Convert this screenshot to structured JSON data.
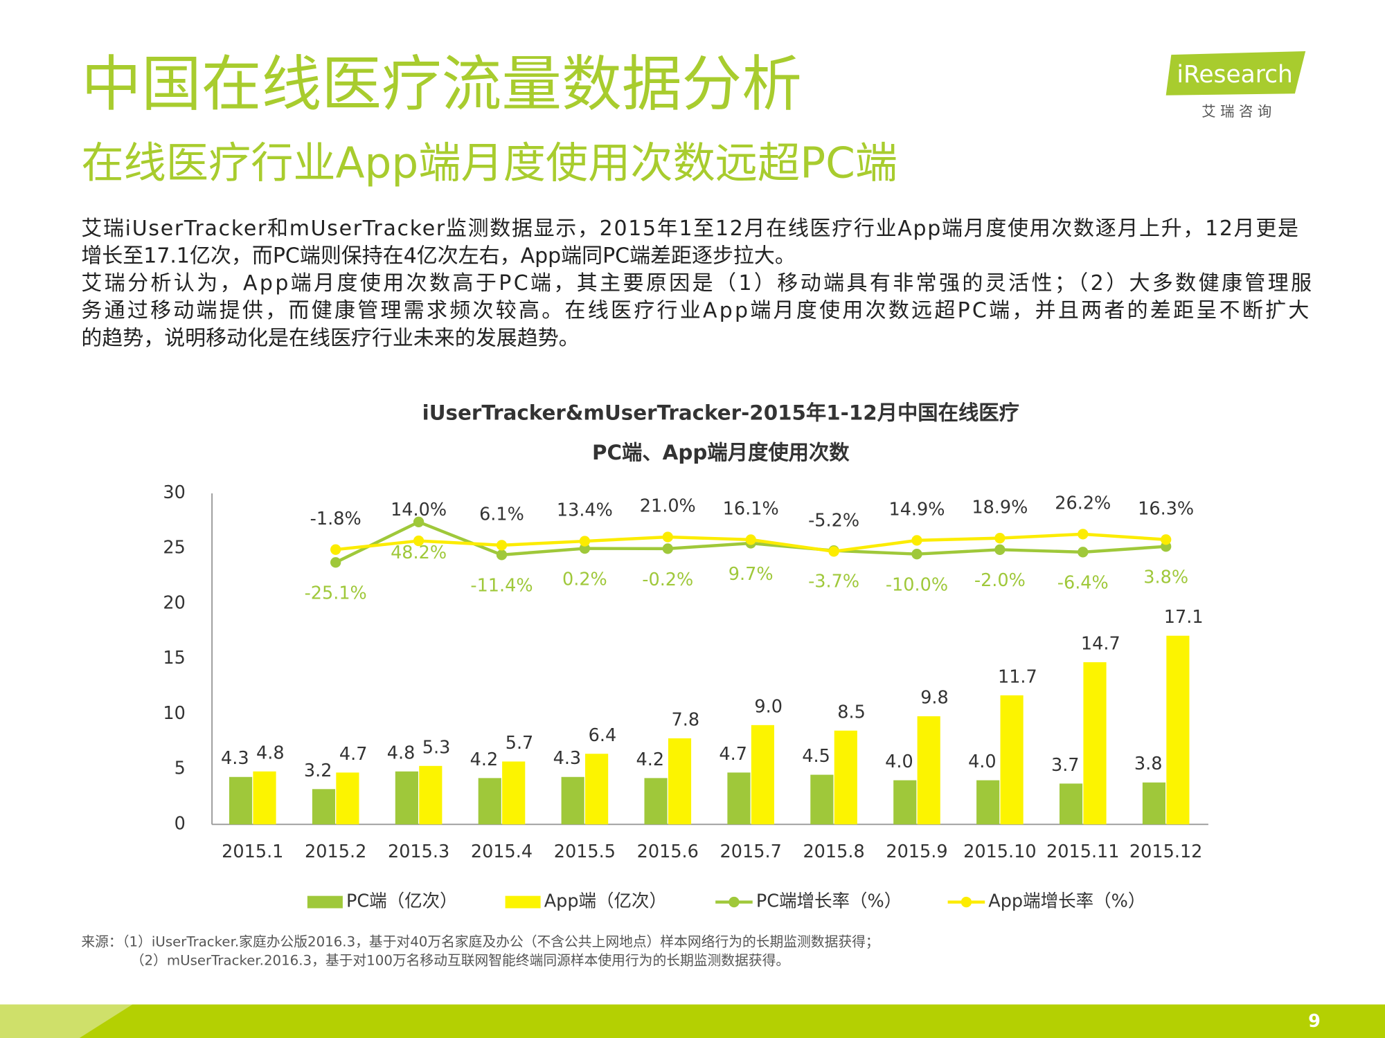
{
  "header": {
    "title": "中国在线医疗流量数据分析",
    "subtitle": "在线医疗行业App端月度使用次数远超PC端"
  },
  "logo": {
    "brand": "iResearch",
    "name": "艾 瑞 咨 询"
  },
  "body": [
    "艾瑞iUserTracker和mUserTracker监测数据显示，2015年1至12月在线医疗行业App端月度使用次数逐月上升，12月更是",
    "增长至17.1亿次，而PC端则保持在4亿次左右，App端同PC端差距逐步拉大。",
    "艾瑞分析认为，App端月度使用次数高于PC端，其主要原因是（1）移动端具有非常强的灵活性；（2）大多数健康管理服",
    "务通过移动端提供，而健康管理需求频次较高。在线医疗行业App端月度使用次数远超PC端，并且两者的差距呈不断扩大",
    "的趋势，说明移动化是在线医疗行业未来的发展趋势。"
  ],
  "source": [
    "来源：（1）iUserTracker.家庭办公版2016.3，基于对40万名家庭及办公（不含公共上网地点）样本网络行为的长期监测数据获得；",
    "（2）mUserTracker.2016.3，基于对100万名移动互联网智能终端同源样本使用行为的长期监测数据获得。"
  ],
  "page_number": "9",
  "chart_data": {
    "type": "bar",
    "title": [
      "iUserTracker&mUserTracker-2015年1-12月中国在线医疗",
      "PC端、App端月度使用次数"
    ],
    "categories": [
      "2015.1",
      "2015.2",
      "2015.3",
      "2015.4",
      "2015.5",
      "2015.6",
      "2015.7",
      "2015.8",
      "2015.9",
      "2015.10",
      "2015.11",
      "2015.12"
    ],
    "ylim": [
      0,
      30
    ],
    "yticks": [
      0,
      5,
      10,
      15,
      20,
      25,
      30
    ],
    "y2lim": [
      -500,
      100
    ],
    "legend": "bottom",
    "series": [
      {
        "name": "PC端（亿次）",
        "type": "bar",
        "color": "#9fc83a",
        "values": [
          4.3,
          3.2,
          4.8,
          4.2,
          4.3,
          4.2,
          4.7,
          4.5,
          4.0,
          4.0,
          3.7,
          3.8
        ],
        "value_labels": [
          "4.3",
          "3.2",
          "4.8",
          "4.2",
          "4.3",
          "4.2",
          "4.7",
          "4.5",
          "4.0",
          "4.0",
          "3.7",
          "3.8"
        ]
      },
      {
        "name": "App端（亿次）",
        "type": "bar",
        "color": "#fcf400",
        "values": [
          4.8,
          4.7,
          5.3,
          5.7,
          6.4,
          7.8,
          9.0,
          8.5,
          9.8,
          11.7,
          14.7,
          17.1
        ],
        "value_labels": [
          "4.8",
          "4.7",
          "5.3",
          "5.7",
          "6.4",
          "7.8",
          "9.0",
          "8.5",
          "9.8",
          "11.7",
          "14.7",
          "17.1"
        ]
      },
      {
        "name": "PC端增长率（%）",
        "type": "line",
        "axis": "y2",
        "color": "#9fc83a",
        "label_color": "#9fc83a",
        "values": [
          null,
          -25.1,
          48.2,
          -11.4,
          0.2,
          -0.2,
          9.7,
          -3.7,
          -10.0,
          -2.0,
          -6.4,
          3.8
        ],
        "value_labels": [
          null,
          "-25.1%",
          "48.2%",
          "-11.4%",
          "0.2%",
          "-0.2%",
          "9.7%",
          "-3.7%",
          "-10.0%",
          "-2.0%",
          "-6.4%",
          "3.8%"
        ]
      },
      {
        "name": "App端增长率（%）",
        "type": "line",
        "axis": "y2",
        "color": "#fcec00",
        "label_color": "#333333",
        "values": [
          null,
          -1.8,
          14.0,
          6.1,
          13.4,
          21.0,
          16.1,
          -5.2,
          14.9,
          18.9,
          26.2,
          16.3
        ],
        "value_labels": [
          null,
          "-1.8%",
          "14.0%",
          "6.1%",
          "13.4%",
          "21.0%",
          "16.1%",
          "-5.2%",
          "14.9%",
          "18.9%",
          "26.2%",
          "16.3%"
        ]
      }
    ]
  }
}
